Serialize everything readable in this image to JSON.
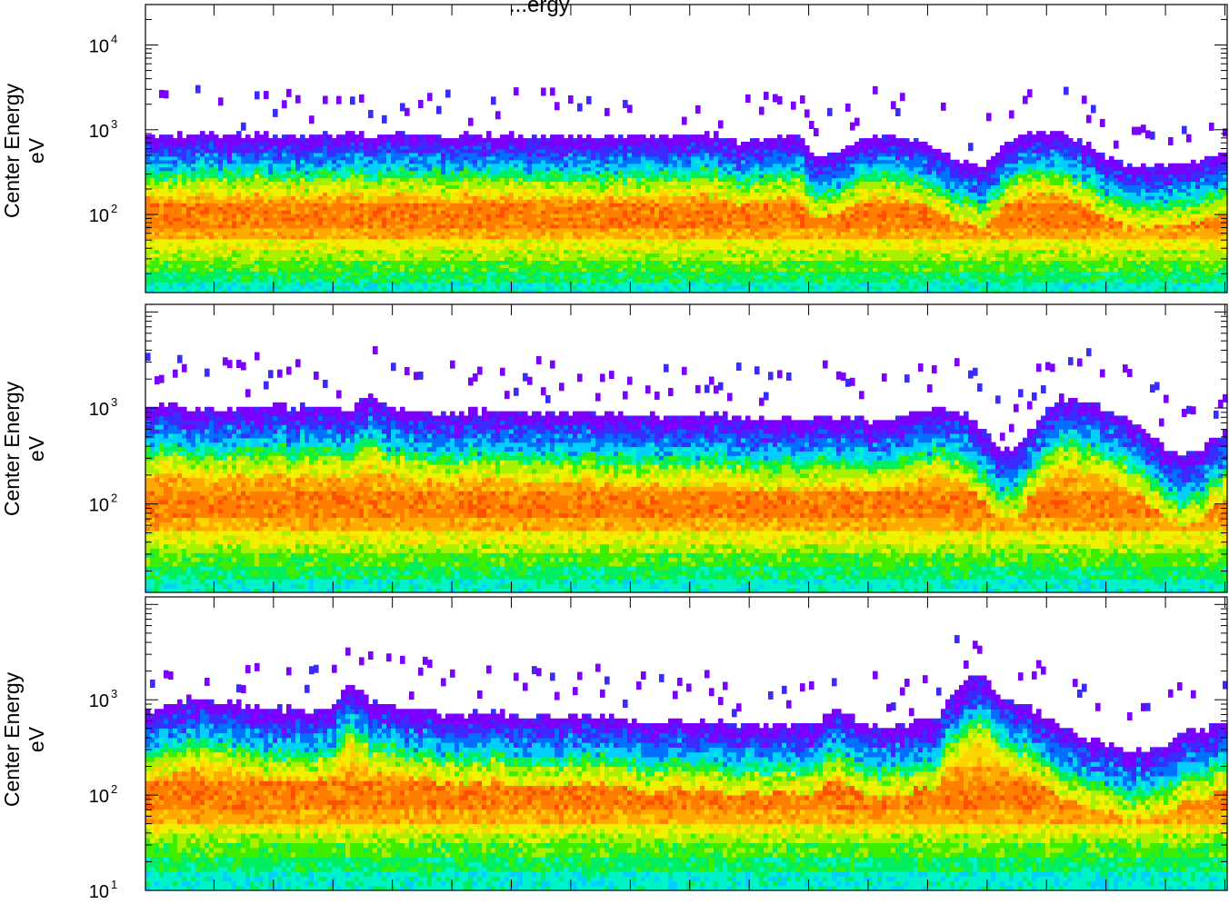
{
  "chart_data": {
    "type": "heatmap",
    "title": "Particle Energy Flux",
    "title_partial": "...ergy",
    "panels": [
      {
        "ylabel_line1": "Center Energy",
        "ylabel_line2": "eV",
        "y_scale": "log",
        "ylim": [
          12,
          30000
        ],
        "y_ticks": [
          {
            "value": 100,
            "label": "10",
            "exp": "2"
          },
          {
            "value": 1000,
            "label": "10",
            "exp": "3"
          },
          {
            "value": 10000,
            "label": "10",
            "exp": "4"
          }
        ],
        "upper_edge_eV": [
          850,
          850,
          900,
          900,
          880,
          900,
          860,
          850,
          850,
          870,
          890,
          880,
          870,
          850,
          850,
          860,
          880,
          870,
          860,
          840,
          820,
          820,
          820,
          830,
          850,
          850,
          860,
          870,
          860,
          700,
          750,
          850,
          850,
          450,
          550,
          800,
          850,
          800,
          720,
          550,
          450,
          350,
          600,
          900,
          950,
          900,
          750,
          500,
          400,
          380,
          380,
          400,
          450,
          550
        ]
      },
      {
        "ylabel_line1": "Center Energy",
        "ylabel_line2": "eV",
        "y_scale": "log",
        "ylim": [
          12,
          12000
        ],
        "y_ticks": [
          {
            "value": 100,
            "label": "10",
            "exp": "2"
          },
          {
            "value": 1000,
            "label": "10",
            "exp": "3"
          }
        ],
        "upper_edge_eV": [
          1000,
          1100,
          1000,
          1000,
          1000,
          1000,
          1100,
          1000,
          1050,
          1000,
          1000,
          1400,
          1000,
          1000,
          900,
          900,
          950,
          900,
          950,
          920,
          900,
          900,
          880,
          860,
          860,
          850,
          850,
          850,
          850,
          820,
          800,
          780,
          780,
          790,
          800,
          800,
          700,
          800,
          900,
          1000,
          900,
          600,
          350,
          450,
          800,
          1300,
          1200,
          1000,
          800,
          600,
          400,
          300,
          400,
          600
        ]
      },
      {
        "ylabel_line1": "Center Energy",
        "ylabel_line2": "eV",
        "y_scale": "log",
        "ylim": [
          10,
          12000
        ],
        "y_ticks": [
          {
            "value": 10,
            "label": "10",
            "exp": "1"
          },
          {
            "value": 100,
            "label": "10",
            "exp": "2"
          },
          {
            "value": 1000,
            "label": "10",
            "exp": "3"
          }
        ],
        "upper_edge_eV": [
          750,
          900,
          1000,
          1000,
          950,
          900,
          800,
          800,
          780,
          800,
          1500,
          900,
          850,
          800,
          750,
          700,
          700,
          750,
          700,
          650,
          650,
          700,
          700,
          650,
          600,
          600,
          620,
          600,
          600,
          550,
          550,
          550,
          550,
          600,
          800,
          600,
          500,
          550,
          600,
          700,
          1500,
          1800,
          1000,
          900,
          700,
          500,
          400,
          350,
          300,
          300,
          350,
          450,
          500,
          550
        ]
      }
    ],
    "x_ticks_count": 18,
    "grid": false,
    "legend": "none",
    "colormap": [
      "#7b00ff",
      "#3a2cff",
      "#0070ff",
      "#00cfff",
      "#00f2c8",
      "#00ee60",
      "#3dee00",
      "#a8f000",
      "#eef200",
      "#ffd400",
      "#ffaa00",
      "#ff7e00",
      "#ff5000"
    ]
  }
}
